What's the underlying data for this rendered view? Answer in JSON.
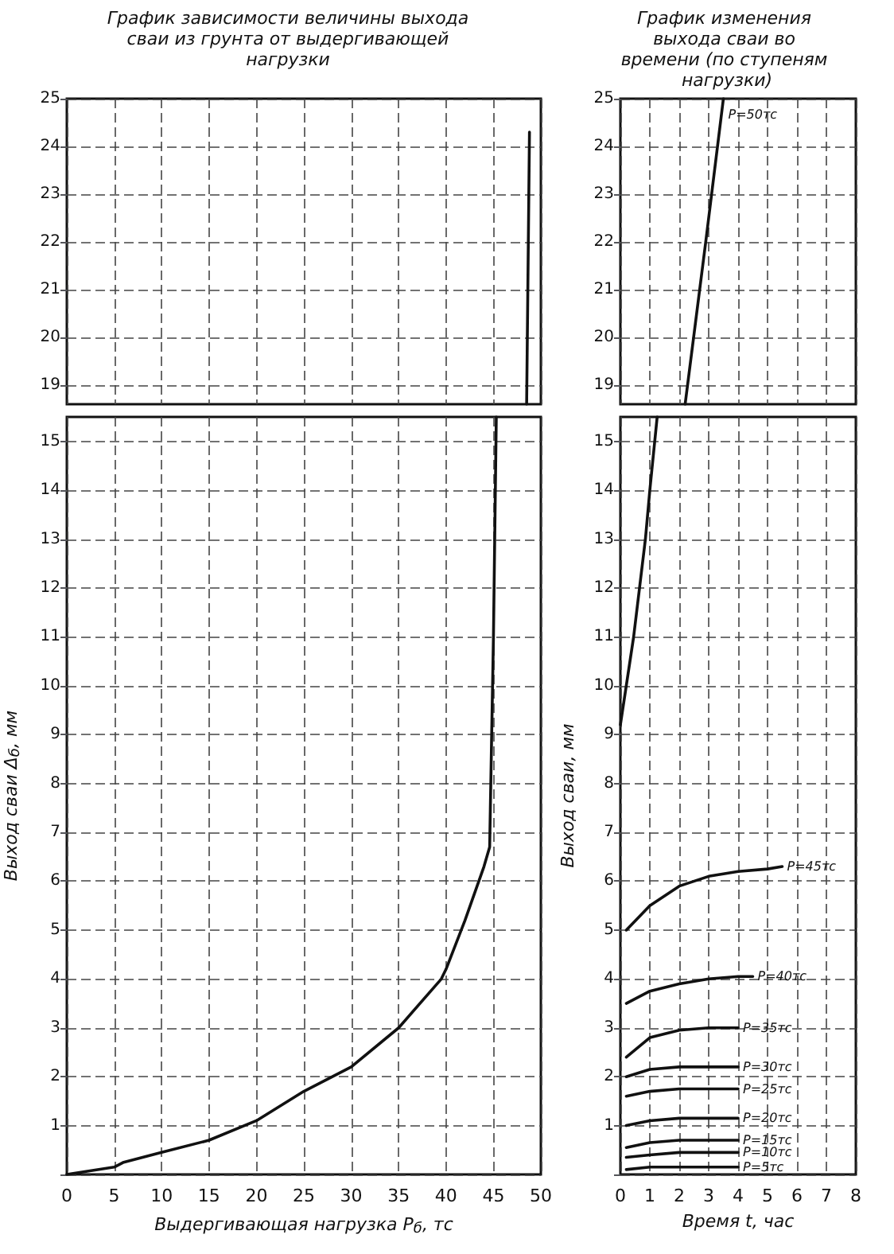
{
  "chart_data": [
    {
      "type": "line",
      "title": "График зависимости величины выхода сваи из грунта от выдергивающей нагрузки",
      "xlim": [
        0,
        50
      ],
      "xticks": [
        0,
        5,
        10,
        15,
        20,
        25,
        30,
        35,
        40,
        45,
        50
      ],
      "ylim": [
        18.6,
        25
      ],
      "yticks": [
        19,
        20,
        21,
        22,
        23,
        24,
        25
      ],
      "grid": true,
      "tick_labels": "y",
      "marker": "none",
      "line_style": "solid",
      "series": [
        {
          "color": "#111111",
          "x": [
            48.5,
            48.8
          ],
          "values": [
            18.6,
            24.3
          ]
        }
      ]
    },
    {
      "type": "line",
      "xlabel": "Выдергивающая нагрузка Р$_{б}$, тс",
      "ylabel": "Выход сваи Δ$_{б}$, мм",
      "xlim": [
        0,
        50
      ],
      "xticks": [
        0,
        5,
        10,
        15,
        20,
        25,
        30,
        35,
        40,
        45,
        50
      ],
      "ylim": [
        0,
        15.5
      ],
      "yticks": [
        {
          "value": 0,
          "label": null
        },
        1,
        2,
        3,
        4,
        5,
        6,
        7,
        8,
        9,
        10,
        11,
        12,
        13,
        14,
        15
      ],
      "grid": true,
      "marker": "none",
      "line_style": "solid",
      "series": [
        {
          "color": "#111111",
          "x": [
            0,
            5,
            6,
            10,
            15,
            20,
            25,
            30,
            35,
            39.5,
            40,
            42,
            44,
            44.6,
            45,
            45.3
          ],
          "values": [
            0,
            0.15,
            0.25,
            0.45,
            0.7,
            1.1,
            1.7,
            2.2,
            3.0,
            4.0,
            4.2,
            5.2,
            6.3,
            6.7,
            11,
            15.5
          ]
        }
      ]
    },
    {
      "type": "line",
      "title": "График изменения выхода сваи во времени (по ступеням нагрузки)",
      "xlim": [
        0,
        8
      ],
      "xticks": [
        0,
        1,
        2,
        3,
        4,
        5,
        6,
        7,
        8
      ],
      "ylim": [
        18.6,
        25
      ],
      "yticks": [
        19,
        20,
        21,
        22,
        23,
        24,
        25
      ],
      "grid": true,
      "tick_labels": "y",
      "marker": "none",
      "line_style": "solid",
      "series": [
        {
          "name": "Р=50тс",
          "color": "#111111",
          "x": [
            2.2,
            2.9,
            3.5
          ],
          "values": [
            18.6,
            22,
            25
          ]
        }
      ]
    },
    {
      "type": "line",
      "xlabel": "Время t, час",
      "ylabel": "Выход сваи, мм",
      "xlim": [
        0,
        8
      ],
      "xticks": [
        0,
        1,
        2,
        3,
        4,
        5,
        6,
        7,
        8
      ],
      "ylim": [
        0,
        15.5
      ],
      "yticks": [
        {
          "value": 0,
          "label": null
        },
        1,
        2,
        3,
        4,
        5,
        6,
        7,
        8,
        9,
        10,
        11,
        12,
        13,
        14,
        15
      ],
      "grid": true,
      "marker": "none",
      "line_style": "solid",
      "series": [
        {
          "color": "#111111",
          "x": [
            0,
            0.45,
            0.65,
            0.85,
            1.0,
            1.25
          ],
          "values": [
            9.2,
            11,
            12,
            13,
            14,
            15.5
          ]
        },
        {
          "name": "Р=45тс",
          "color": "#111111",
          "x": [
            0.2,
            1,
            2,
            3,
            4,
            5,
            5.5
          ],
          "values": [
            5.0,
            5.5,
            5.9,
            6.1,
            6.2,
            6.25,
            6.3
          ]
        },
        {
          "name": "Р=40тс",
          "color": "#111111",
          "x": [
            0.2,
            1,
            2,
            3,
            4,
            4.5
          ],
          "values": [
            3.5,
            3.75,
            3.9,
            4.0,
            4.05,
            4.05
          ]
        },
        {
          "name": "Р=35тс",
          "color": "#111111",
          "x": [
            0.2,
            1,
            2,
            3,
            4
          ],
          "values": [
            2.4,
            2.8,
            2.95,
            3.0,
            3.0
          ]
        },
        {
          "name": "Р=30тс",
          "color": "#111111",
          "x": [
            0.2,
            1,
            2,
            3,
            4
          ],
          "values": [
            2.0,
            2.15,
            2.2,
            2.2,
            2.2
          ]
        },
        {
          "name": "Р=25тс",
          "color": "#111111",
          "x": [
            0.2,
            1,
            2,
            3,
            4
          ],
          "values": [
            1.6,
            1.7,
            1.75,
            1.75,
            1.75
          ]
        },
        {
          "name": "Р=20тс",
          "color": "#111111",
          "x": [
            0.2,
            1,
            2,
            3,
            4
          ],
          "values": [
            1.0,
            1.1,
            1.15,
            1.15,
            1.15
          ]
        },
        {
          "name": "Р=15тс",
          "color": "#111111",
          "x": [
            0.2,
            1,
            2,
            3,
            4
          ],
          "values": [
            0.55,
            0.65,
            0.7,
            0.7,
            0.7
          ]
        },
        {
          "name": "Р=10тс",
          "color": "#111111",
          "x": [
            0.2,
            1,
            2,
            3,
            4
          ],
          "values": [
            0.35,
            0.4,
            0.45,
            0.45,
            0.45
          ]
        },
        {
          "name": "Р=5тс",
          "color": "#111111",
          "x": [
            0.2,
            1,
            2,
            3,
            4
          ],
          "values": [
            0.1,
            0.15,
            0.15,
            0.15,
            0.15
          ]
        }
      ]
    }
  ]
}
